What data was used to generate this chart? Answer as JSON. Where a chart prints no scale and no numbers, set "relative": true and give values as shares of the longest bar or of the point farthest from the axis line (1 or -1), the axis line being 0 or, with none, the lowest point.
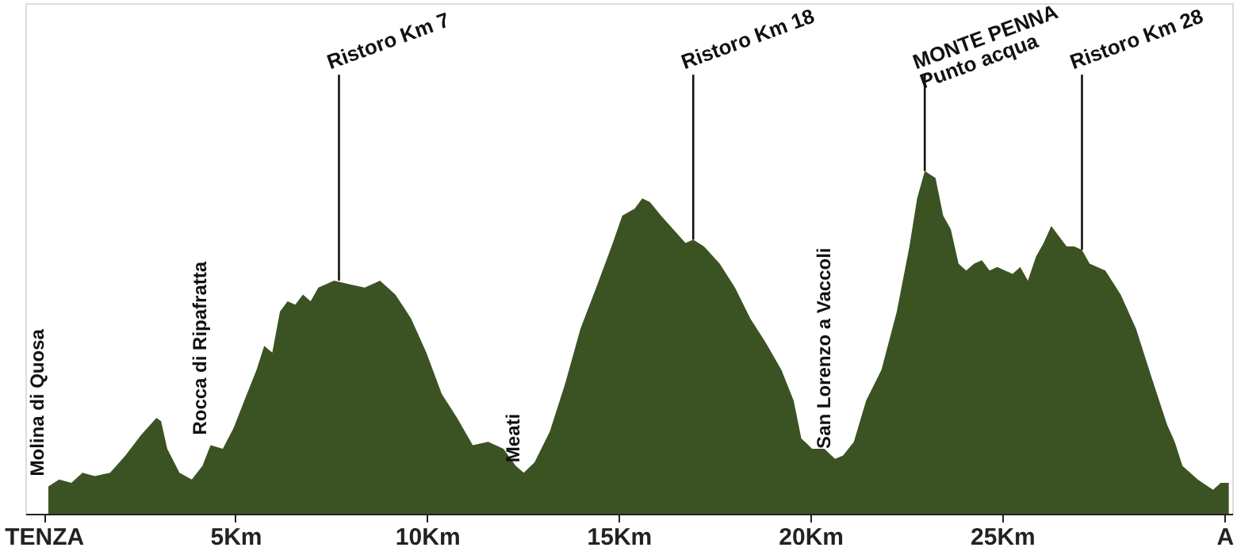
{
  "chart_data": {
    "type": "area",
    "relative": true,
    "x": [
      0.12,
      0.4,
      0.72,
      1.01,
      1.33,
      1.73,
      2.13,
      2.54,
      2.94,
      3.06,
      3.22,
      3.54,
      3.86,
      4.14,
      4.35,
      4.67,
      4.95,
      5.23,
      5.55,
      5.75,
      5.96,
      6.16,
      6.36,
      6.56,
      6.76,
      6.96,
      7.16,
      7.36,
      7.57,
      7.97,
      8.37,
      8.77,
      9.17,
      9.58,
      9.98,
      10.38,
      10.78,
      11.19,
      11.59,
      11.99,
      12.31,
      12.52,
      12.8,
      13.2,
      13.6,
      14.0,
      14.41,
      14.81,
      15.09,
      15.41,
      15.61,
      15.81,
      16.1,
      16.42,
      16.74,
      16.94,
      17.22,
      17.63,
      18.03,
      18.43,
      18.83,
      19.24,
      19.56,
      19.76,
      20.04,
      20.36,
      20.64,
      20.85,
      21.13,
      21.45,
      21.85,
      22.25,
      22.58,
      22.78,
      22.98,
      23.26,
      23.46,
      23.66,
      23.86,
      24.06,
      24.27,
      24.47,
      24.67,
      24.87,
      25.27,
      25.47,
      25.67,
      25.88,
      26.08,
      26.28,
      26.48,
      26.68,
      26.88,
      27.08,
      27.28,
      27.69,
      28.09,
      28.49,
      28.89,
      29.3,
      29.5,
      29.7,
      30.1,
      30.5,
      30.7,
      30.91
    ],
    "series": [
      {
        "color": "#3b5323",
        "values": [
          0.08,
          0.1,
          0.09,
          0.12,
          0.11,
          0.12,
          0.17,
          0.23,
          0.28,
          0.27,
          0.19,
          0.12,
          0.1,
          0.14,
          0.2,
          0.19,
          0.25,
          0.33,
          0.42,
          0.49,
          0.47,
          0.59,
          0.62,
          0.61,
          0.64,
          0.62,
          0.66,
          0.67,
          0.68,
          0.67,
          0.66,
          0.68,
          0.64,
          0.57,
          0.47,
          0.35,
          0.28,
          0.2,
          0.21,
          0.19,
          0.14,
          0.12,
          0.15,
          0.24,
          0.38,
          0.54,
          0.66,
          0.78,
          0.87,
          0.89,
          0.92,
          0.91,
          0.87,
          0.83,
          0.79,
          0.8,
          0.78,
          0.73,
          0.66,
          0.57,
          0.5,
          0.42,
          0.33,
          0.22,
          0.19,
          0.19,
          0.16,
          0.17,
          0.21,
          0.33,
          0.42,
          0.59,
          0.78,
          0.92,
          1,
          0.98,
          0.87,
          0.83,
          0.73,
          0.71,
          0.73,
          0.74,
          0.71,
          0.72,
          0.7,
          0.72,
          0.68,
          0.75,
          0.79,
          0.84,
          0.81,
          0.78,
          0.78,
          0.77,
          0.73,
          0.71,
          0.64,
          0.54,
          0.4,
          0.26,
          0.21,
          0.14,
          0.1,
          0.07,
          0.09,
          0.09
        ]
      }
    ],
    "xlim": [
      -0.48,
      31.0
    ],
    "xticks": [
      {
        "value": 0,
        "label": "TENZA"
      },
      {
        "value": 5,
        "label": "5Km"
      },
      {
        "value": 10,
        "label": "10Km"
      },
      {
        "value": 15,
        "label": "15Km"
      },
      {
        "value": 20,
        "label": "20Km"
      },
      {
        "value": 25,
        "label": "25Km"
      },
      {
        "value": 30.8,
        "label": "A"
      }
    ],
    "annotations": [
      {
        "text": "Ristoro Km 7",
        "x": 7.7,
        "y": 0.68
      },
      {
        "text": "Ristoro Km 18",
        "x": 16.94,
        "y": 0.8
      },
      {
        "text": "MONTE PENNA\nPunto acqua",
        "x": 22.98,
        "y": 1
      },
      {
        "text": "Ristoro Km 28",
        "x": 27.08,
        "y": 0.77
      },
      {
        "text": "Molina di Quosa",
        "x": 0.12,
        "y": 0.08
      },
      {
        "text": "Rocca di Ripafratta",
        "x": 4.35,
        "y": 0.2
      },
      {
        "text": "Meati",
        "x": 12.52,
        "y": 0.12
      },
      {
        "text": "San Lorenzo a Vaccoli",
        "x": 20.64,
        "y": 0.16
      }
    ],
    "grid": false
  }
}
